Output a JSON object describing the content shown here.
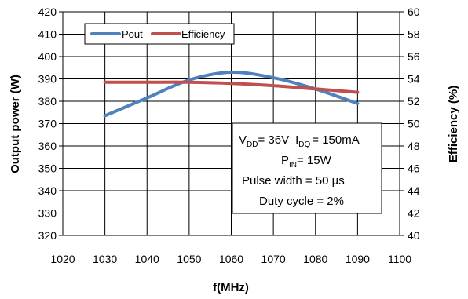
{
  "chart_data": {
    "type": "line",
    "x": [
      1030,
      1040,
      1050,
      1060,
      1070,
      1080,
      1090
    ],
    "x_ticks": [
      "1020",
      "1030",
      "1040",
      "1050",
      "1060",
      "1070",
      "1080",
      "1090",
      "1100"
    ],
    "xlim": [
      1020,
      1100
    ],
    "xlabel": "f(MHz)",
    "ylabel_left": "Output power (W)",
    "ylim_left": [
      320,
      420
    ],
    "y_ticks_left": [
      "320",
      "330",
      "340",
      "350",
      "360",
      "370",
      "380",
      "390",
      "400",
      "410",
      "420"
    ],
    "ylabel_right": "Efficiency (%)",
    "ylim_right": [
      40,
      60
    ],
    "y_ticks_right": [
      "40",
      "42",
      "44",
      "46",
      "48",
      "50",
      "52",
      "54",
      "56",
      "58",
      "60"
    ],
    "grid": true,
    "series": [
      {
        "name": "Pout",
        "axis": "left",
        "color": "#4f81bd",
        "values": [
          373.5,
          381.5,
          389.5,
          393,
          390.5,
          385.5,
          379
        ]
      },
      {
        "name": "Efficiency",
        "axis": "right",
        "color": "#c0504d",
        "values": [
          53.7,
          53.7,
          53.7,
          53.6,
          53.4,
          53.1,
          52.8
        ]
      }
    ],
    "legend_position": "top-left"
  },
  "annotation": {
    "line1": {
      "v": "V",
      "v_sub": "DD",
      "v_val": "= 36V",
      "i": "I",
      "i_sub": "DQ",
      "i_val": "= 150mA"
    },
    "line2": {
      "p": "P",
      "p_sub": "IN",
      "p_val": "= 15W"
    },
    "line3": "Pulse width = 50 µs",
    "line4": "Duty cycle = 2%"
  }
}
